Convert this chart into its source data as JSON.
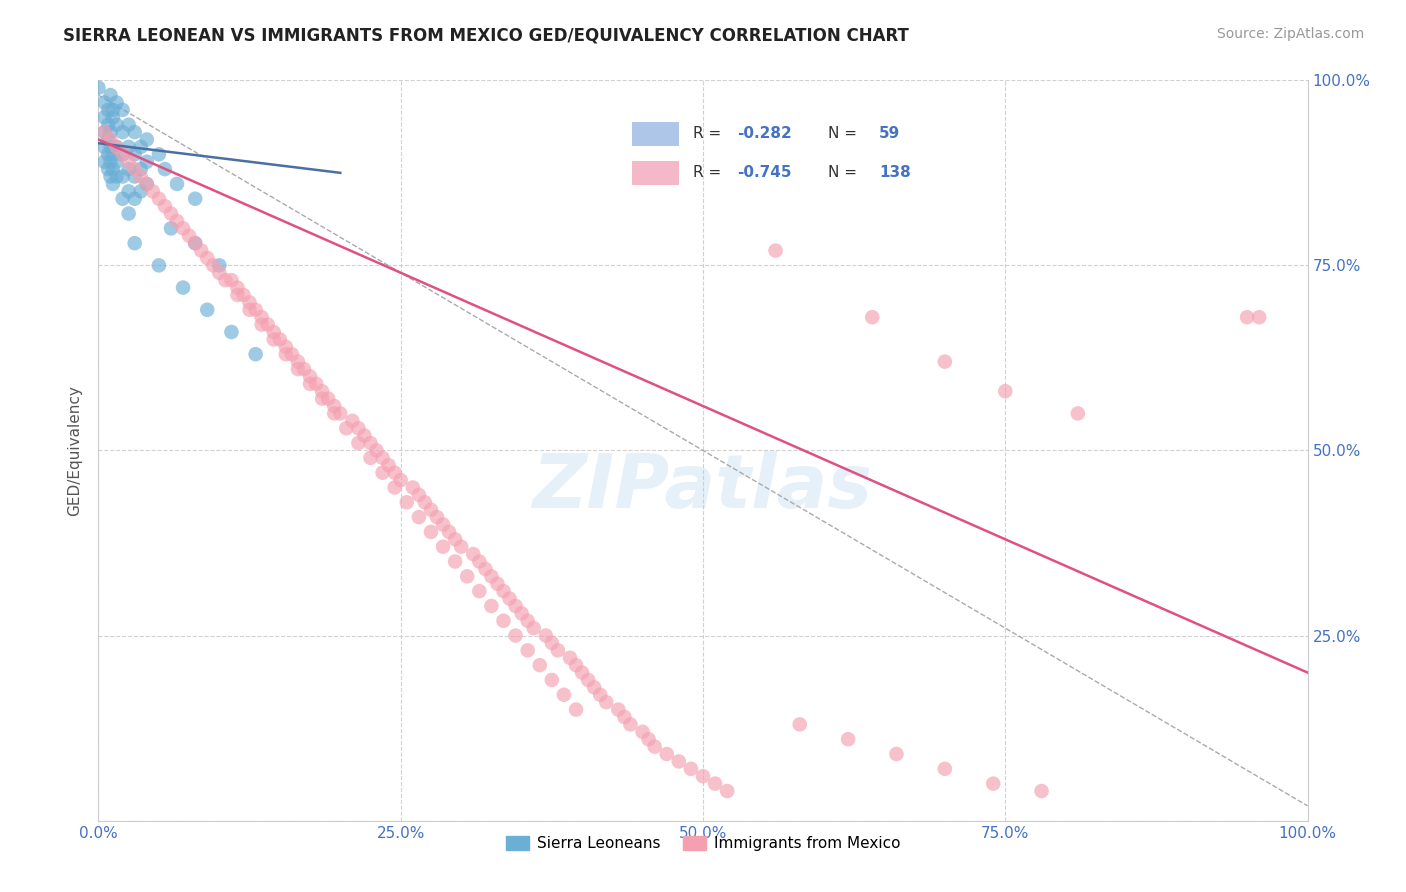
{
  "title": "SIERRA LEONEAN VS IMMIGRANTS FROM MEXICO GED/EQUIVALENCY CORRELATION CHART",
  "source": "Source: ZipAtlas.com",
  "ylabel": "GED/Equivalency",
  "xlim": [
    0,
    1
  ],
  "ylim": [
    0,
    1
  ],
  "xticks": [
    0,
    0.25,
    0.5,
    0.75,
    1.0
  ],
  "yticks": [
    0,
    0.25,
    0.5,
    0.75,
    1.0
  ],
  "xtick_labels": [
    "0.0%",
    "25.0%",
    "50.0%",
    "75.0%",
    "100.0%"
  ],
  "ytick_labels_right": [
    "",
    "25.0%",
    "50.0%",
    "75.0%",
    "100.0%"
  ],
  "background_color": "#ffffff",
  "grid_color": "#cccccc",
  "blue_color": "#6baed6",
  "pink_color": "#f4a0b0",
  "blue_line_color": "#4a6fa5",
  "pink_line_color": "#e05080",
  "watermark": "ZIPatlas",
  "blue_scatter": [
    [
      0.005,
      0.97
    ],
    [
      0.008,
      0.96
    ],
    [
      0.01,
      0.98
    ],
    [
      0.012,
      0.95
    ],
    [
      0.015,
      0.97
    ],
    [
      0.005,
      0.95
    ],
    [
      0.008,
      0.94
    ],
    [
      0.01,
      0.93
    ],
    [
      0.012,
      0.96
    ],
    [
      0.015,
      0.94
    ],
    [
      0.005,
      0.93
    ],
    [
      0.008,
      0.92
    ],
    [
      0.01,
      0.91
    ],
    [
      0.012,
      0.9
    ],
    [
      0.015,
      0.91
    ],
    [
      0.005,
      0.91
    ],
    [
      0.008,
      0.9
    ],
    [
      0.01,
      0.89
    ],
    [
      0.012,
      0.88
    ],
    [
      0.015,
      0.89
    ],
    [
      0.005,
      0.89
    ],
    [
      0.008,
      0.88
    ],
    [
      0.01,
      0.87
    ],
    [
      0.012,
      0.86
    ],
    [
      0.015,
      0.87
    ],
    [
      0.02,
      0.96
    ],
    [
      0.02,
      0.93
    ],
    [
      0.02,
      0.9
    ],
    [
      0.02,
      0.87
    ],
    [
      0.02,
      0.84
    ],
    [
      0.025,
      0.94
    ],
    [
      0.025,
      0.91
    ],
    [
      0.025,
      0.88
    ],
    [
      0.025,
      0.85
    ],
    [
      0.025,
      0.82
    ],
    [
      0.03,
      0.93
    ],
    [
      0.03,
      0.9
    ],
    [
      0.03,
      0.87
    ],
    [
      0.03,
      0.84
    ],
    [
      0.035,
      0.91
    ],
    [
      0.035,
      0.88
    ],
    [
      0.035,
      0.85
    ],
    [
      0.04,
      0.92
    ],
    [
      0.04,
      0.89
    ],
    [
      0.04,
      0.86
    ],
    [
      0.05,
      0.9
    ],
    [
      0.055,
      0.88
    ],
    [
      0.065,
      0.86
    ],
    [
      0.08,
      0.84
    ],
    [
      0.03,
      0.78
    ],
    [
      0.05,
      0.75
    ],
    [
      0.07,
      0.72
    ],
    [
      0.09,
      0.69
    ],
    [
      0.11,
      0.66
    ],
    [
      0.13,
      0.63
    ],
    [
      0.06,
      0.8
    ],
    [
      0.08,
      0.78
    ],
    [
      0.1,
      0.75
    ],
    [
      0.0,
      0.99
    ]
  ],
  "pink_scatter": [
    [
      0.005,
      0.93
    ],
    [
      0.01,
      0.92
    ],
    [
      0.015,
      0.91
    ],
    [
      0.02,
      0.9
    ],
    [
      0.025,
      0.89
    ],
    [
      0.03,
      0.88
    ],
    [
      0.035,
      0.87
    ],
    [
      0.04,
      0.86
    ],
    [
      0.045,
      0.85
    ],
    [
      0.05,
      0.84
    ],
    [
      0.055,
      0.83
    ],
    [
      0.06,
      0.82
    ],
    [
      0.065,
      0.81
    ],
    [
      0.07,
      0.8
    ],
    [
      0.075,
      0.79
    ],
    [
      0.08,
      0.78
    ],
    [
      0.085,
      0.77
    ],
    [
      0.09,
      0.76
    ],
    [
      0.095,
      0.75
    ],
    [
      0.1,
      0.74
    ],
    [
      0.11,
      0.73
    ],
    [
      0.115,
      0.72
    ],
    [
      0.12,
      0.71
    ],
    [
      0.125,
      0.7
    ],
    [
      0.13,
      0.69
    ],
    [
      0.135,
      0.68
    ],
    [
      0.14,
      0.67
    ],
    [
      0.145,
      0.66
    ],
    [
      0.15,
      0.65
    ],
    [
      0.155,
      0.64
    ],
    [
      0.16,
      0.63
    ],
    [
      0.165,
      0.62
    ],
    [
      0.17,
      0.61
    ],
    [
      0.175,
      0.6
    ],
    [
      0.18,
      0.59
    ],
    [
      0.185,
      0.58
    ],
    [
      0.19,
      0.57
    ],
    [
      0.195,
      0.56
    ],
    [
      0.2,
      0.55
    ],
    [
      0.21,
      0.54
    ],
    [
      0.215,
      0.53
    ],
    [
      0.22,
      0.52
    ],
    [
      0.225,
      0.51
    ],
    [
      0.23,
      0.5
    ],
    [
      0.235,
      0.49
    ],
    [
      0.24,
      0.48
    ],
    [
      0.245,
      0.47
    ],
    [
      0.25,
      0.46
    ],
    [
      0.26,
      0.45
    ],
    [
      0.265,
      0.44
    ],
    [
      0.27,
      0.43
    ],
    [
      0.275,
      0.42
    ],
    [
      0.28,
      0.41
    ],
    [
      0.285,
      0.4
    ],
    [
      0.29,
      0.39
    ],
    [
      0.295,
      0.38
    ],
    [
      0.3,
      0.37
    ],
    [
      0.31,
      0.36
    ],
    [
      0.315,
      0.35
    ],
    [
      0.32,
      0.34
    ],
    [
      0.325,
      0.33
    ],
    [
      0.33,
      0.32
    ],
    [
      0.335,
      0.31
    ],
    [
      0.34,
      0.3
    ],
    [
      0.345,
      0.29
    ],
    [
      0.35,
      0.28
    ],
    [
      0.355,
      0.27
    ],
    [
      0.36,
      0.26
    ],
    [
      0.37,
      0.25
    ],
    [
      0.375,
      0.24
    ],
    [
      0.38,
      0.23
    ],
    [
      0.39,
      0.22
    ],
    [
      0.395,
      0.21
    ],
    [
      0.4,
      0.2
    ],
    [
      0.405,
      0.19
    ],
    [
      0.41,
      0.18
    ],
    [
      0.415,
      0.17
    ],
    [
      0.42,
      0.16
    ],
    [
      0.43,
      0.15
    ],
    [
      0.435,
      0.14
    ],
    [
      0.44,
      0.13
    ],
    [
      0.45,
      0.12
    ],
    [
      0.455,
      0.11
    ],
    [
      0.46,
      0.1
    ],
    [
      0.47,
      0.09
    ],
    [
      0.48,
      0.08
    ],
    [
      0.49,
      0.07
    ],
    [
      0.5,
      0.06
    ],
    [
      0.51,
      0.05
    ],
    [
      0.52,
      0.04
    ],
    [
      0.105,
      0.73
    ],
    [
      0.115,
      0.71
    ],
    [
      0.125,
      0.69
    ],
    [
      0.135,
      0.67
    ],
    [
      0.145,
      0.65
    ],
    [
      0.155,
      0.63
    ],
    [
      0.165,
      0.61
    ],
    [
      0.175,
      0.59
    ],
    [
      0.185,
      0.57
    ],
    [
      0.195,
      0.55
    ],
    [
      0.205,
      0.53
    ],
    [
      0.215,
      0.51
    ],
    [
      0.225,
      0.49
    ],
    [
      0.235,
      0.47
    ],
    [
      0.245,
      0.45
    ],
    [
      0.255,
      0.43
    ],
    [
      0.265,
      0.41
    ],
    [
      0.275,
      0.39
    ],
    [
      0.285,
      0.37
    ],
    [
      0.295,
      0.35
    ],
    [
      0.305,
      0.33
    ],
    [
      0.315,
      0.31
    ],
    [
      0.325,
      0.29
    ],
    [
      0.335,
      0.27
    ],
    [
      0.345,
      0.25
    ],
    [
      0.355,
      0.23
    ],
    [
      0.365,
      0.21
    ],
    [
      0.375,
      0.19
    ],
    [
      0.385,
      0.17
    ],
    [
      0.395,
      0.15
    ],
    [
      0.56,
      0.77
    ],
    [
      0.64,
      0.68
    ],
    [
      0.7,
      0.62
    ],
    [
      0.75,
      0.58
    ],
    [
      0.81,
      0.55
    ],
    [
      0.96,
      0.68
    ],
    [
      0.58,
      0.13
    ],
    [
      0.62,
      0.11
    ],
    [
      0.66,
      0.09
    ],
    [
      0.7,
      0.07
    ],
    [
      0.74,
      0.05
    ],
    [
      0.78,
      0.04
    ],
    [
      0.95,
      0.68
    ]
  ],
  "blue_legend_color": "#aec6e8",
  "pink_legend_color": "#f4b8c8"
}
